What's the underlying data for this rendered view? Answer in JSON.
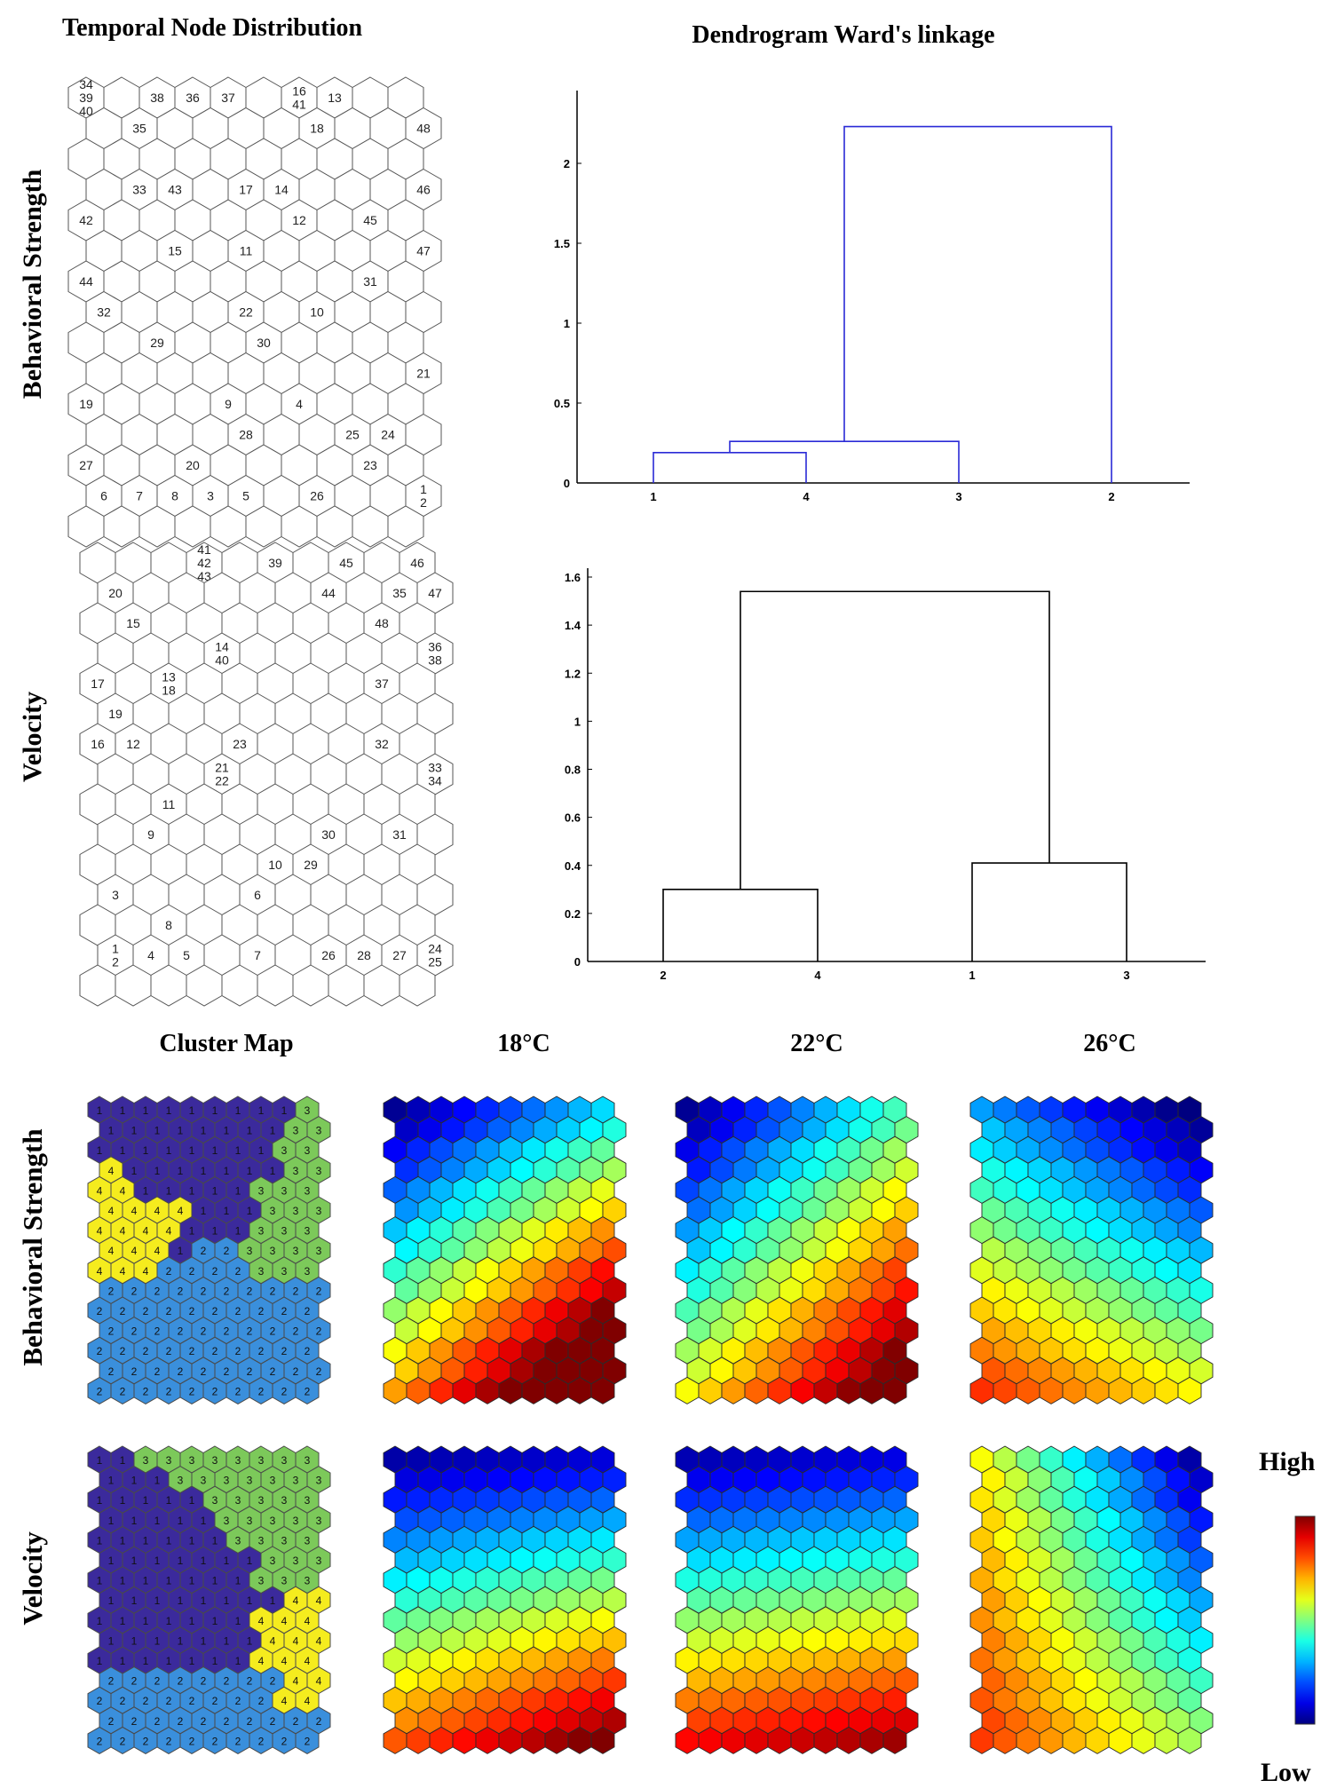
{
  "headers": {
    "temporal": "Temporal Node Distribution",
    "dendro": "Dendrogram Ward's linkage",
    "cluster_map": "Cluster Map",
    "t18": "18°C",
    "t22": "22°C",
    "t26": "26°C"
  },
  "rows": {
    "behavioral": "Behavioral Strength",
    "velocity": "Velocity"
  },
  "colorbar": {
    "high": "High",
    "low": "Low"
  },
  "chart_data": [
    {
      "type": "som_hit_map",
      "id": "temporal_behavioral",
      "title": "Temporal Node Distribution",
      "row": "Behavioral Strength",
      "grid": {
        "cols": 10,
        "rows": 15
      },
      "hits": [
        {
          "col": 0,
          "row": 0,
          "labels": [
            "34",
            "39",
            "40"
          ]
        },
        {
          "col": 2,
          "row": 0,
          "labels": [
            "38"
          ]
        },
        {
          "col": 3,
          "row": 0,
          "labels": [
            "36"
          ]
        },
        {
          "col": 4,
          "row": 0,
          "labels": [
            "37"
          ]
        },
        {
          "col": 6,
          "row": 0,
          "labels": [
            "16",
            "41"
          ]
        },
        {
          "col": 7,
          "row": 0,
          "labels": [
            "13"
          ]
        },
        {
          "col": 1,
          "row": 1,
          "labels": [
            "35"
          ]
        },
        {
          "col": 6,
          "row": 1,
          "labels": [
            "18"
          ]
        },
        {
          "col": 9,
          "row": 1,
          "labels": [
            "48"
          ]
        },
        {
          "col": 1,
          "row": 3,
          "labels": [
            "33"
          ]
        },
        {
          "col": 2,
          "row": 3,
          "labels": [
            "43"
          ]
        },
        {
          "col": 4,
          "row": 3,
          "labels": [
            "17"
          ]
        },
        {
          "col": 5,
          "row": 3,
          "labels": [
            "14"
          ]
        },
        {
          "col": 9,
          "row": 3,
          "labels": [
            "46"
          ]
        },
        {
          "col": 0,
          "row": 4,
          "labels": [
            "42"
          ]
        },
        {
          "col": 6,
          "row": 4,
          "labels": [
            "12"
          ]
        },
        {
          "col": 8,
          "row": 4,
          "labels": [
            "45"
          ]
        },
        {
          "col": 2,
          "row": 5,
          "labels": [
            "15"
          ]
        },
        {
          "col": 4,
          "row": 5,
          "labels": [
            "11"
          ]
        },
        {
          "col": 9,
          "row": 5,
          "labels": [
            "47"
          ]
        },
        {
          "col": 0,
          "row": 6,
          "labels": [
            "44"
          ]
        },
        {
          "col": 8,
          "row": 6,
          "labels": [
            "31"
          ]
        },
        {
          "col": 0,
          "row": 7,
          "labels": [
            "32"
          ]
        },
        {
          "col": 4,
          "row": 7,
          "labels": [
            "22"
          ]
        },
        {
          "col": 6,
          "row": 7,
          "labels": [
            "10"
          ]
        },
        {
          "col": 2,
          "row": 8,
          "labels": [
            "29"
          ]
        },
        {
          "col": 5,
          "row": 8,
          "labels": [
            "30"
          ]
        },
        {
          "col": 9,
          "row": 9,
          "labels": [
            "21"
          ]
        },
        {
          "col": 0,
          "row": 10,
          "labels": [
            "19"
          ]
        },
        {
          "col": 4,
          "row": 10,
          "labels": [
            "9"
          ]
        },
        {
          "col": 6,
          "row": 10,
          "labels": [
            "4"
          ]
        },
        {
          "col": 4,
          "row": 11,
          "labels": [
            "28"
          ]
        },
        {
          "col": 7,
          "row": 11,
          "labels": [
            "25"
          ]
        },
        {
          "col": 8,
          "row": 11,
          "labels": [
            "24"
          ]
        },
        {
          "col": 0,
          "row": 12,
          "labels": [
            "27"
          ]
        },
        {
          "col": 3,
          "row": 12,
          "labels": [
            "20"
          ]
        },
        {
          "col": 8,
          "row": 12,
          "labels": [
            "23"
          ]
        },
        {
          "col": 0,
          "row": 13,
          "labels": [
            "6"
          ]
        },
        {
          "col": 1,
          "row": 13,
          "labels": [
            "7"
          ]
        },
        {
          "col": 2,
          "row": 13,
          "labels": [
            "8"
          ]
        },
        {
          "col": 3,
          "row": 13,
          "labels": [
            "3"
          ]
        },
        {
          "col": 4,
          "row": 13,
          "labels": [
            "5"
          ]
        },
        {
          "col": 6,
          "row": 13,
          "labels": [
            "26"
          ]
        },
        {
          "col": 9,
          "row": 13,
          "labels": [
            "1",
            "2"
          ]
        }
      ]
    },
    {
      "type": "dendrogram",
      "id": "dendro_behavioral",
      "title": "Dendrogram Ward's linkage",
      "row": "Behavioral Strength",
      "color": "#2a2ad6",
      "leaf_order": [
        "1",
        "4",
        "3",
        "2"
      ],
      "merges": [
        {
          "left": "1",
          "right": "4",
          "height": 0.19
        },
        {
          "left": "1+4",
          "right": "3",
          "height": 0.26
        },
        {
          "left": "1+4+3",
          "right": "2",
          "height": 2.23
        }
      ],
      "ylim": [
        0,
        2.4
      ],
      "yticks": [
        "0",
        "0.5",
        "1",
        "1.5",
        "2"
      ]
    },
    {
      "type": "som_hit_map",
      "id": "temporal_velocity",
      "row": "Velocity",
      "grid": {
        "cols": 10,
        "rows": 15
      },
      "hits": [
        {
          "col": 3,
          "row": 0,
          "labels": [
            "41",
            "42",
            "43"
          ]
        },
        {
          "col": 5,
          "row": 0,
          "labels": [
            "39"
          ]
        },
        {
          "col": 7,
          "row": 0,
          "labels": [
            "45"
          ]
        },
        {
          "col": 9,
          "row": 0,
          "labels": [
            "46"
          ]
        },
        {
          "col": 0,
          "row": 1,
          "labels": [
            "20"
          ]
        },
        {
          "col": 6,
          "row": 1,
          "labels": [
            "44"
          ]
        },
        {
          "col": 8,
          "row": 1,
          "labels": [
            "35"
          ]
        },
        {
          "col": 9,
          "row": 1,
          "labels": [
            "47"
          ]
        },
        {
          "col": 1,
          "row": 2,
          "labels": [
            "15"
          ]
        },
        {
          "col": 8,
          "row": 2,
          "labels": [
            "48"
          ]
        },
        {
          "col": 3,
          "row": 3,
          "labels": [
            "14",
            "40"
          ]
        },
        {
          "col": 9,
          "row": 3,
          "labels": [
            "36",
            "38"
          ]
        },
        {
          "col": 0,
          "row": 4,
          "labels": [
            "17"
          ]
        },
        {
          "col": 2,
          "row": 4,
          "labels": [
            "13",
            "18"
          ]
        },
        {
          "col": 8,
          "row": 4,
          "labels": [
            "37"
          ]
        },
        {
          "col": 0,
          "row": 5,
          "labels": [
            "19"
          ]
        },
        {
          "col": 0,
          "row": 6,
          "labels": [
            "16"
          ]
        },
        {
          "col": 1,
          "row": 6,
          "labels": [
            "12"
          ]
        },
        {
          "col": 4,
          "row": 6,
          "labels": [
            "23"
          ]
        },
        {
          "col": 8,
          "row": 6,
          "labels": [
            "32"
          ]
        },
        {
          "col": 3,
          "row": 7,
          "labels": [
            "21",
            "22"
          ]
        },
        {
          "col": 9,
          "row": 7,
          "labels": [
            "33",
            "34"
          ]
        },
        {
          "col": 2,
          "row": 8,
          "labels": [
            "11"
          ]
        },
        {
          "col": 1,
          "row": 9,
          "labels": [
            "9"
          ]
        },
        {
          "col": 6,
          "row": 9,
          "labels": [
            "30"
          ]
        },
        {
          "col": 8,
          "row": 9,
          "labels": [
            "31"
          ]
        },
        {
          "col": 5,
          "row": 10,
          "labels": [
            "10"
          ]
        },
        {
          "col": 6,
          "row": 10,
          "labels": [
            "29"
          ]
        },
        {
          "col": 0,
          "row": 11,
          "labels": [
            "3"
          ]
        },
        {
          "col": 4,
          "row": 11,
          "labels": [
            "6"
          ]
        },
        {
          "col": 2,
          "row": 12,
          "labels": [
            "8"
          ]
        },
        {
          "col": 0,
          "row": 13,
          "labels": [
            "1",
            "2"
          ]
        },
        {
          "col": 1,
          "row": 13,
          "labels": [
            "4"
          ]
        },
        {
          "col": 2,
          "row": 13,
          "labels": [
            "5"
          ]
        },
        {
          "col": 4,
          "row": 13,
          "labels": [
            "7"
          ]
        },
        {
          "col": 6,
          "row": 13,
          "labels": [
            "26"
          ]
        },
        {
          "col": 7,
          "row": 13,
          "labels": [
            "28"
          ]
        },
        {
          "col": 8,
          "row": 13,
          "labels": [
            "27"
          ]
        },
        {
          "col": 9,
          "row": 13,
          "labels": [
            "24",
            "25"
          ]
        }
      ]
    },
    {
      "type": "dendrogram",
      "id": "dendro_velocity",
      "row": "Velocity",
      "color": "#000000",
      "leaf_order": [
        "2",
        "4",
        "1",
        "3"
      ],
      "merges": [
        {
          "left": "2",
          "right": "4",
          "height": 0.3
        },
        {
          "left": "1",
          "right": "3",
          "height": 0.41
        },
        {
          "left": "2+4",
          "right": "1+3",
          "height": 1.54
        }
      ],
      "ylim": [
        0,
        1.6
      ],
      "yticks": [
        "0",
        "0.2",
        "0.4",
        "0.6",
        "0.8",
        "1",
        "1.2",
        "1.4",
        "1.6"
      ]
    },
    {
      "type": "som_cluster_map",
      "id": "cluster_behavioral",
      "title": "Cluster Map",
      "row": "Behavioral Strength",
      "grid": {
        "cols": 10,
        "rows": 15
      },
      "cluster_colors": {
        "1": "#3b2a9c",
        "2": "#3a8fdc",
        "3": "#7cc95a",
        "4": "#f5ec1e"
      },
      "clusters": [
        "1111111113",
        "1111111133",
        "1111111133",
        "4111111133",
        "4411111333",
        "4444111333",
        "4444111333",
        "4441223333",
        "4442222333",
        "2222222222",
        "2222222222",
        "2222222222",
        "2222222222",
        "2222222222",
        "2222222222"
      ]
    },
    {
      "type": "som_heatmap",
      "id": "heat_b18",
      "title": "18°C",
      "row": "Behavioral Strength",
      "grid": {
        "cols": 10,
        "rows": 15
      },
      "value_model": {
        "form": "planar",
        "base": 0.02,
        "col_gain": 0.32,
        "row_gain": 0.7,
        "cross": 0.22
      },
      "scale": {
        "low": "Low",
        "high": "High"
      }
    },
    {
      "type": "som_heatmap",
      "id": "heat_b22",
      "title": "22°C",
      "row": "Behavioral Strength",
      "grid": {
        "cols": 10,
        "rows": 15
      },
      "value_model": {
        "form": "planar",
        "base": 0.02,
        "col_gain": 0.42,
        "row_gain": 0.6,
        "cross": 0.05
      },
      "scale": {
        "low": "Low",
        "high": "High"
      }
    },
    {
      "type": "som_heatmap",
      "id": "heat_b26",
      "title": "26°C",
      "row": "Behavioral Strength",
      "grid": {
        "cols": 10,
        "rows": 15
      },
      "value_model": {
        "form": "planar",
        "base": 0.28,
        "col_gain": -0.3,
        "row_gain": 0.55,
        "cross": 0.1
      },
      "scale": {
        "low": "Low",
        "high": "High"
      }
    },
    {
      "type": "som_cluster_map",
      "id": "cluster_velocity",
      "row": "Velocity",
      "grid": {
        "cols": 10,
        "rows": 15
      },
      "cluster_colors": {
        "1": "#3b2a9c",
        "2": "#3a8fdc",
        "3": "#7cc95a",
        "4": "#f5ec1e"
      },
      "clusters": [
        "1133333333",
        "1113333333",
        "1111133333",
        "1111133333",
        "1111113333",
        "1111111333",
        "1111111333",
        "1111111144",
        "1111111444",
        "1111111444",
        "1111111444",
        "2222222244",
        "2222222244",
        "2222222222",
        "2222222222"
      ]
    },
    {
      "type": "som_heatmap",
      "id": "heat_v18",
      "title": "18°C",
      "row": "Velocity",
      "grid": {
        "cols": 10,
        "rows": 15
      },
      "value_model": {
        "form": "planar",
        "base": 0.04,
        "col_gain": 0.05,
        "row_gain": 0.75,
        "cross": 0.18
      },
      "scale": {
        "low": "Low",
        "high": "High"
      }
    },
    {
      "type": "som_heatmap",
      "id": "heat_v22",
      "title": "22°C",
      "row": "Velocity",
      "grid": {
        "cols": 10,
        "rows": 15
      },
      "value_model": {
        "form": "planar",
        "base": 0.05,
        "col_gain": 0.05,
        "row_gain": 0.82,
        "cross": 0.05
      },
      "scale": {
        "low": "Low",
        "high": "High"
      }
    },
    {
      "type": "som_heatmap",
      "id": "heat_v26",
      "title": "26°C",
      "row": "Velocity",
      "grid": {
        "cols": 10,
        "rows": 15
      },
      "value_model": {
        "form": "planar",
        "base": 0.62,
        "col_gain": -0.58,
        "row_gain": 0.2,
        "cross": 0.3
      },
      "scale": {
        "low": "Low",
        "high": "High"
      }
    }
  ]
}
